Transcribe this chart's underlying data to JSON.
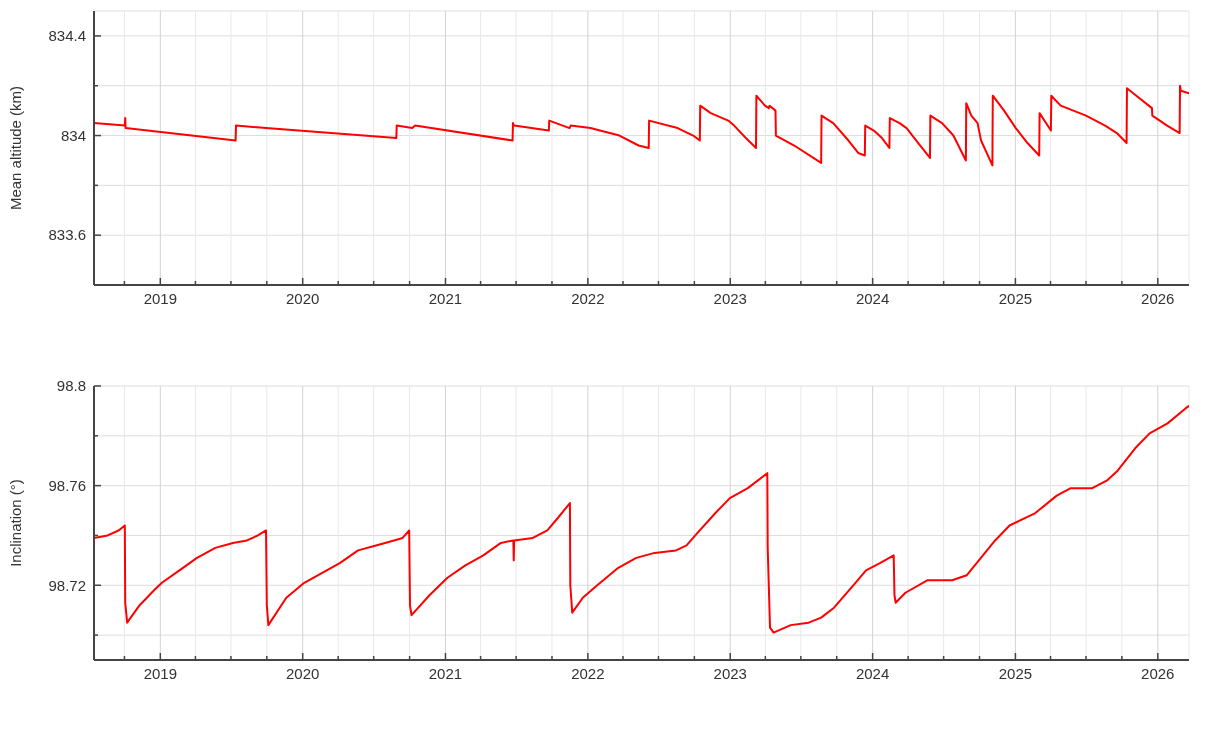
{
  "chart_data": [
    {
      "type": "line",
      "ylabel": "Mean altitude (km)",
      "color": "#ff0000",
      "grid": true,
      "xlim": [
        "2018-07-15",
        "2026-03-22"
      ],
      "ylim": [
        833.4,
        834.5
      ],
      "yticks": [
        833.6,
        {
          "value": 833.8,
          "label": null
        },
        834,
        {
          "value": 834.2,
          "label": null
        },
        834.4
      ],
      "xticks": [
        {
          "value": "2018-10",
          "label": null
        },
        "2019",
        {
          "value": "2019-04",
          "label": null
        },
        {
          "value": "2019-07",
          "label": null
        },
        {
          "value": "2019-10",
          "label": null
        },
        "2020",
        {
          "value": "2020-04",
          "label": null
        },
        {
          "value": "2020-07",
          "label": null
        },
        {
          "value": "2020-10",
          "label": null
        },
        "2021",
        {
          "value": "2021-04",
          "label": null
        },
        {
          "value": "2021-07",
          "label": null
        },
        {
          "value": "2021-10",
          "label": null
        },
        "2022",
        {
          "value": "2022-04",
          "label": null
        },
        {
          "value": "2022-07",
          "label": null
        },
        {
          "value": "2022-10",
          "label": null
        },
        "2023",
        {
          "value": "2023-04",
          "label": null
        },
        {
          "value": "2023-07",
          "label": null
        },
        {
          "value": "2023-10",
          "label": null
        },
        "2024",
        {
          "value": "2024-04",
          "label": null
        },
        {
          "value": "2024-07",
          "label": null
        },
        {
          "value": "2024-10",
          "label": null
        },
        "2025",
        {
          "value": "2025-04",
          "label": null
        },
        {
          "value": "2025-07",
          "label": null
        },
        {
          "value": "2025-10",
          "label": null
        },
        "2026"
      ],
      "x": [
        "2018-07-15",
        "2018-10-02",
        "2018-10-03",
        "2018-10-04",
        "2019-07-13",
        "2019-07-14",
        "2019-09-29",
        "2020-08-28",
        "2020-08-29",
        "2020-10-08",
        "2020-10-15",
        "2021-06-22",
        "2021-06-23",
        "2021-06-26",
        "2021-09-23",
        "2021-09-24",
        "2021-11-15",
        "2021-11-18",
        "2022-01-08",
        "2022-02-01",
        "2022-03-23",
        "2022-05-11",
        "2022-06-06",
        "2022-06-07",
        "2022-08-19",
        "2022-09-28",
        "2022-10-15",
        "2022-10-16",
        "2022-11-12",
        "2022-12-27",
        "2023-01-11",
        "2023-02-10",
        "2023-03-08",
        "2023-03-09",
        "2023-03-31",
        "2023-04-10",
        "2023-04-12",
        "2023-04-27",
        "2023-04-28",
        "2023-06-14",
        "2023-08-22",
        "2023-08-23",
        "2023-09-22",
        "2023-10-31",
        "2023-11-25",
        "2023-12-12",
        "2023-12-13",
        "2024-01-04",
        "2024-01-25",
        "2024-02-13",
        "2024-02-14",
        "2024-03-10",
        "2024-03-28",
        "2024-04-27",
        "2024-05-27",
        "2024-05-28",
        "2024-06-27",
        "2024-07-26",
        "2024-08-27",
        "2024-08-28",
        "2024-09-10",
        "2024-09-26",
        "2024-10-05",
        "2024-11-03",
        "2024-11-04",
        "2024-12-03",
        "2025-01-02",
        "2025-02-01",
        "2025-03-03",
        "2025-03-04",
        "2025-04-02",
        "2025-04-03",
        "2025-04-27",
        "2025-07-01",
        "2025-08-19",
        "2025-09-18",
        "2025-10-13",
        "2025-10-14",
        "2025-11-07",
        "2025-12-17",
        "2025-12-18",
        "2026-01-25",
        "2026-02-26",
        "2026-02-27",
        "2026-03-01",
        "2026-03-22"
      ],
      "values": [
        834.05,
        834.04,
        834.07,
        834.03,
        833.98,
        834.04,
        834.03,
        833.99,
        834.04,
        834.03,
        834.04,
        833.98,
        834.05,
        834.04,
        834.02,
        834.06,
        834.03,
        834.04,
        834.03,
        834.02,
        834.0,
        833.96,
        833.95,
        834.06,
        834.03,
        834.0,
        833.98,
        834.12,
        834.09,
        834.06,
        834.04,
        833.99,
        833.95,
        834.16,
        834.12,
        834.11,
        834.12,
        834.1,
        834.0,
        833.96,
        833.89,
        834.08,
        834.05,
        833.98,
        833.93,
        833.92,
        834.04,
        834.02,
        833.99,
        833.95,
        834.07,
        834.05,
        834.03,
        833.97,
        833.91,
        834.08,
        834.05,
        834.0,
        833.9,
        834.13,
        834.08,
        834.05,
        833.98,
        833.88,
        834.16,
        834.1,
        834.03,
        833.97,
        833.92,
        834.09,
        834.02,
        834.16,
        834.12,
        834.08,
        834.04,
        834.01,
        833.97,
        834.19,
        834.16,
        834.11,
        834.08,
        834.04,
        834.01,
        834.2,
        834.18,
        834.17
      ]
    },
    {
      "type": "line",
      "ylabel": "Inclination (°)",
      "color": "#ff0000",
      "grid": true,
      "xlim": [
        "2018-07-15",
        "2026-03-22"
      ],
      "ylim": [
        98.69,
        98.8
      ],
      "yticks": [
        {
          "value": 98.7,
          "label": null
        },
        98.72,
        {
          "value": 98.74,
          "label": null
        },
        98.76,
        {
          "value": 98.78,
          "label": null
        },
        98.8
      ],
      "xticks": [
        {
          "value": "2018-10",
          "label": null
        },
        "2019",
        {
          "value": "2019-04",
          "label": null
        },
        {
          "value": "2019-07",
          "label": null
        },
        {
          "value": "2019-10",
          "label": null
        },
        "2020",
        {
          "value": "2020-04",
          "label": null
        },
        {
          "value": "2020-07",
          "label": null
        },
        {
          "value": "2020-10",
          "label": null
        },
        "2021",
        {
          "value": "2021-04",
          "label": null
        },
        {
          "value": "2021-07",
          "label": null
        },
        {
          "value": "2021-10",
          "label": null
        },
        "2022",
        {
          "value": "2022-04",
          "label": null
        },
        {
          "value": "2022-07",
          "label": null
        },
        {
          "value": "2022-10",
          "label": null
        },
        "2023",
        {
          "value": "2023-04",
          "label": null
        },
        {
          "value": "2023-07",
          "label": null
        },
        {
          "value": "2023-10",
          "label": null
        },
        "2024",
        {
          "value": "2024-04",
          "label": null
        },
        {
          "value": "2024-07",
          "label": null
        },
        {
          "value": "2024-10",
          "label": null
        },
        "2025",
        {
          "value": "2025-04",
          "label": null
        },
        {
          "value": "2025-07",
          "label": null
        },
        {
          "value": "2025-10",
          "label": null
        },
        "2026"
      ],
      "x": [
        "2018-07-15",
        "2018-08-19",
        "2018-09-16",
        "2018-10-02",
        "2018-10-03",
        "2018-10-08",
        "2018-11-09",
        "2018-12-16",
        "2019-01-05",
        "2019-02-19",
        "2019-04-05",
        "2019-05-22",
        "2019-07-06",
        "2019-08-11",
        "2019-09-08",
        "2019-09-29",
        "2019-10-01",
        "2019-10-05",
        "2019-11-20",
        "2020-01-05",
        "2020-02-20",
        "2020-04-06",
        "2020-05-22",
        "2020-07-07",
        "2020-08-22",
        "2020-09-13",
        "2020-09-30",
        "2020-10-02",
        "2020-10-06",
        "2020-11-21",
        "2021-01-06",
        "2021-02-21",
        "2021-04-08",
        "2021-05-23",
        "2021-06-24",
        "2021-06-25",
        "2021-06-26",
        "2021-08-13",
        "2021-09-19",
        "2021-10-16",
        "2021-11-16",
        "2021-11-17",
        "2021-11-22",
        "2021-12-19",
        "2022-01-25",
        "2022-03-20",
        "2022-05-05",
        "2022-06-21",
        "2022-08-15",
        "2022-09-11",
        "2022-10-09",
        "2022-11-24",
        "2022-12-31",
        "2023-02-15",
        "2023-04-06",
        "2023-04-07",
        "2023-04-13",
        "2023-04-22",
        "2023-06-05",
        "2023-07-21",
        "2023-08-22",
        "2023-09-24",
        "2023-11-18",
        "2023-12-15",
        "2024-01-21",
        "2024-02-24",
        "2024-02-26",
        "2024-02-29",
        "2024-03-25",
        "2024-05-20",
        "2024-07-23",
        "2024-08-29",
        "2024-11-10",
        "2024-12-17",
        "2025-02-21",
        "2025-04-17",
        "2025-05-23",
        "2025-07-17",
        "2025-08-23",
        "2025-09-20",
        "2025-11-04",
        "2025-12-11",
        "2026-01-26",
        "2026-03-13",
        "2026-03-22"
      ],
      "values": [
        98.739,
        98.74,
        98.742,
        98.744,
        98.713,
        98.705,
        98.712,
        98.718,
        98.721,
        98.726,
        98.731,
        98.735,
        98.737,
        98.738,
        98.74,
        98.742,
        98.712,
        98.704,
        98.715,
        98.721,
        98.725,
        98.729,
        98.734,
        98.736,
        98.738,
        98.739,
        98.742,
        98.712,
        98.708,
        98.716,
        98.723,
        98.728,
        98.732,
        98.737,
        98.738,
        98.73,
        98.738,
        98.739,
        98.742,
        98.747,
        98.753,
        98.72,
        98.709,
        98.715,
        98.72,
        98.727,
        98.731,
        98.733,
        98.734,
        98.736,
        98.741,
        98.749,
        98.755,
        98.759,
        98.765,
        98.735,
        98.703,
        98.701,
        98.704,
        98.705,
        98.707,
        98.711,
        98.721,
        98.726,
        98.729,
        98.732,
        98.716,
        98.713,
        98.717,
        98.722,
        98.722,
        98.724,
        98.738,
        98.744,
        98.749,
        98.756,
        98.759,
        98.759,
        98.762,
        98.766,
        98.775,
        98.781,
        98.785,
        98.791,
        98.792
      ]
    }
  ]
}
